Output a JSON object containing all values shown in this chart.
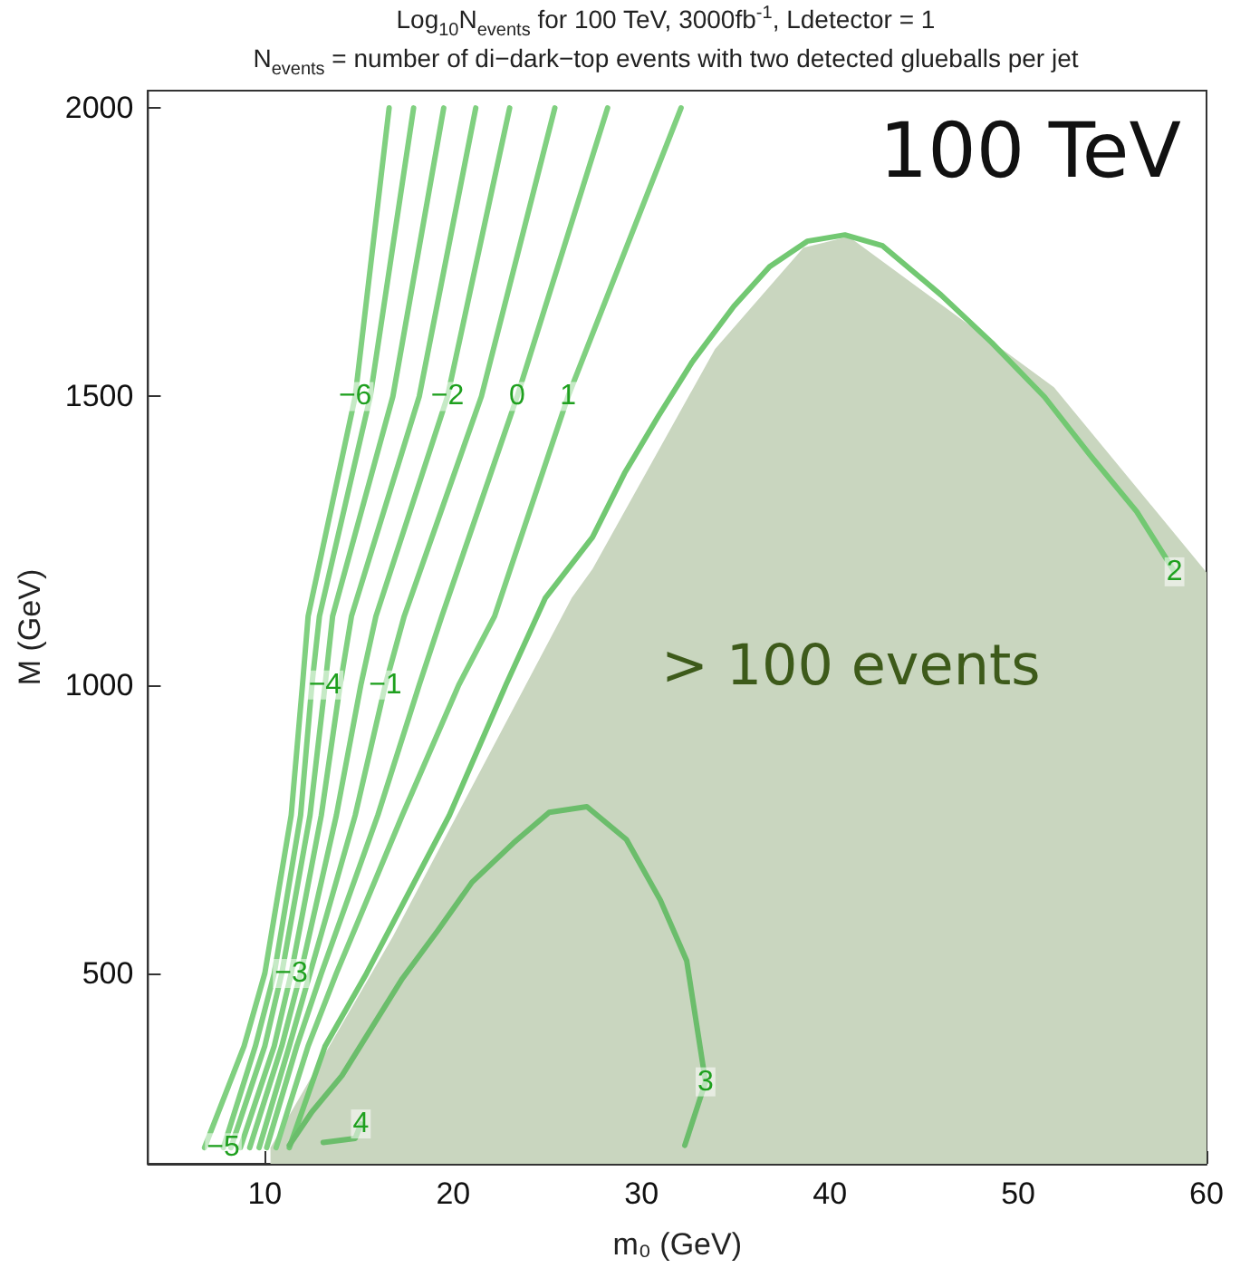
{
  "chart_data": {
    "type": "line",
    "title": "Log$_{10}$N$_{events}$ for 100 TeV, 3000fb$^{-1}$, Ldetector = 1",
    "subtitle": "N$_{events}$ = number of di−dark−top events with two detected glueballs per jet",
    "xlabel": "m₀ (GeV)",
    "ylabel": "M (GeV)",
    "annotations": [
      "100 TeV",
      "> 100 events"
    ],
    "xlim": [
      3.8,
      60
    ],
    "xticks": [
      10,
      20,
      30,
      40,
      50,
      60
    ],
    "ylim": [
      170,
      2030
    ],
    "yticks": [
      500,
      1000,
      1500,
      2000
    ],
    "series": [
      {
        "type": "area",
        "color": "#c9d6bf",
        "x": [
          10.3,
          16.8,
          26.3,
          27.4,
          33.9,
          38.6,
          41.0,
          51.9,
          60
        ],
        "values": [
          198,
          564,
          1151,
          1201,
          1582,
          1758,
          1777,
          1516,
          1195
        ]
      },
      {
        "name": "−6",
        "color": "#80d080",
        "x": [
          6.8,
          8.9,
          10.0,
          11.4,
          12.0,
          12.3,
          14.8,
          16.6
        ],
        "values": [
          198,
          374,
          500,
          774,
          1000,
          1119,
          1500,
          2000
        ]
      },
      {
        "name": "−5",
        "color": "#80d080",
        "x": [
          7.8,
          9.5,
          10.5,
          11.9,
          12.5,
          12.9,
          15.6,
          17.9
        ],
        "values": [
          198,
          374,
          500,
          774,
          1000,
          1119,
          1500,
          2000
        ]
      },
      {
        "name": "−4",
        "color": "#80d080",
        "x": [
          8.2,
          10.0,
          10.9,
          12.4,
          13.2,
          13.6,
          16.8,
          19.5
        ],
        "values": [
          198,
          374,
          500,
          774,
          1000,
          1119,
          1500,
          2000
        ]
      },
      {
        "name": "−3",
        "color": "#80d080",
        "x": [
          8.7,
          10.5,
          11.4,
          13.0,
          14.0,
          14.6,
          18.2,
          21.2
        ],
        "values": [
          198,
          374,
          500,
          774,
          1000,
          1119,
          1500,
          2000
        ]
      },
      {
        "name": "−2",
        "color": "#80d080",
        "x": [
          9.2,
          10.9,
          11.9,
          13.8,
          15.1,
          15.9,
          19.7,
          23.0
        ],
        "values": [
          198,
          374,
          500,
          774,
          1000,
          1119,
          1500,
          2000
        ]
      },
      {
        "name": "−1",
        "color": "#80d080",
        "x": [
          9.7,
          11.3,
          12.4,
          14.8,
          16.4,
          17.4,
          21.5,
          25.4
        ],
        "values": [
          198,
          374,
          500,
          774,
          1000,
          1119,
          1500,
          2000
        ]
      },
      {
        "name": "0",
        "color": "#80d080",
        "x": [
          10.1,
          11.7,
          13.0,
          16.0,
          18.2,
          19.4,
          23.4,
          28.2
        ],
        "values": [
          198,
          374,
          500,
          774,
          1000,
          1119,
          1500,
          2000
        ]
      },
      {
        "name": "1",
        "color": "#80d080",
        "x": [
          10.6,
          12.3,
          13.8,
          17.3,
          20.3,
          22.2,
          26.1,
          32.1
        ],
        "values": [
          198,
          374,
          500,
          774,
          1000,
          1119,
          1500,
          2000
        ]
      },
      {
        "name": "2",
        "color": "#72c872",
        "x": [
          11.3,
          13.2,
          15.4,
          19.8,
          22.8,
          24.9,
          27.4,
          29.1,
          30.9,
          32.7,
          34.9,
          36.8,
          38.8,
          40.8,
          42.8,
          45.9,
          48.6,
          51.4,
          53.8,
          56.3,
          58.3
        ],
        "values": [
          198,
          374,
          500,
          774,
          1000,
          1151,
          1256,
          1367,
          1466,
          1560,
          1656,
          1725,
          1769,
          1780,
          1761,
          1676,
          1593,
          1499,
          1399,
          1300,
          1196
        ]
      },
      {
        "name": "3",
        "color": "#6bbd6b",
        "x": [
          11.3,
          12.5,
          14.1,
          15.7,
          17.3,
          19.2,
          21.0,
          23.2,
          25.1,
          27.1,
          29.2,
          31.0,
          32.4,
          33.4,
          32.3
        ],
        "values": [
          202,
          260,
          323,
          407,
          491,
          575,
          658,
          726,
          779,
          789,
          732,
          627,
          522,
          312,
          202
        ]
      },
      {
        "name": "4",
        "color": "#6bbd6b",
        "x": [
          13.1,
          14.8,
          15.1
        ],
        "values": [
          207,
          214,
          239
        ]
      }
    ]
  }
}
